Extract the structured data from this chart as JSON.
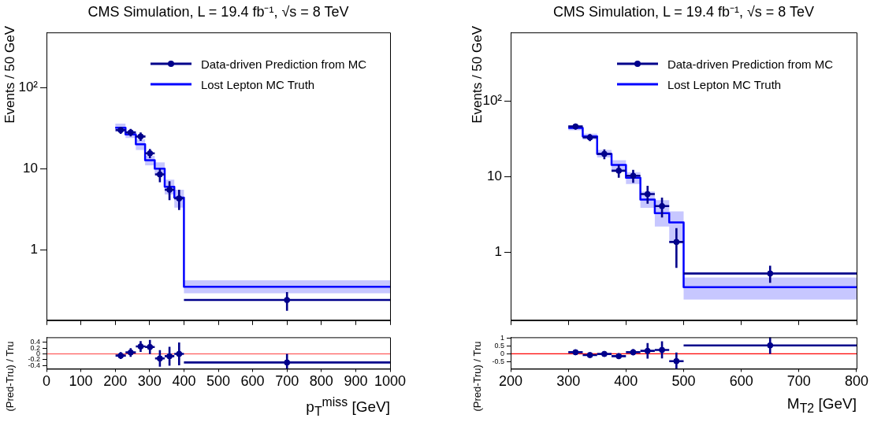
{
  "chart_data": [
    {
      "type": "scatter",
      "title": "CMS Simulation, L = 19.4 fb⁻¹, √s = 8 TeV",
      "ylabel": "Events / 50 GeV",
      "log": "y",
      "xlim": [
        0,
        1000
      ],
      "xticks": [
        0,
        100,
        200,
        300,
        400,
        500,
        600,
        700,
        800,
        900,
        1000
      ],
      "ylim": [
        0.135,
        480
      ],
      "yticks": [
        1,
        10,
        {
          "value": 100,
          "label": "10²"
        }
      ],
      "tick_labels": "y",
      "legend": "top right",
      "series": [
        {
          "name": "Data-driven Prediction from MC",
          "color": "#00008b",
          "x": [
            216,
            245,
            274,
            301,
            330,
            358,
            386,
            700
          ],
          "values": [
            30,
            28,
            25,
            15.5,
            8.5,
            5.5,
            4.3,
            0.24
          ],
          "errors": [
            3,
            3,
            3,
            2,
            [
              6.8,
              10
            ],
            [
              4.1,
              7
            ],
            [
              3.1,
              5.5
            ],
            [
              0.177,
              0.3
            ]
          ],
          "xerrors": [
            15,
            15,
            14,
            14,
            14,
            14,
            14,
            300
          ]
        },
        {
          "name": "Lost Lepton MC Truth",
          "type": "step",
          "color": "#0000ff",
          "x": [
            200,
            230,
            260,
            287,
            315,
            344,
            372,
            400,
            1000
          ],
          "values": [
            32,
            26.5,
            20,
            12.7,
            10,
            6,
            4.4,
            0.35,
            0.35
          ],
          "lower": [
            28.5,
            24,
            17,
            11,
            8.3,
            4.8,
            3.3,
            0.29,
            0.29
          ],
          "upper": [
            36,
            29.5,
            23,
            14.5,
            12,
            7.3,
            5.5,
            0.42,
            0.42
          ]
        }
      ]
    },
    {
      "type": "scatter",
      "xlabel": "p$_{T}$$^{miss}$ [GeV]",
      "ylabel": "(Pred-Tru) / Tru",
      "xlim": [
        0,
        1000
      ],
      "xticks": [
        0,
        100,
        200,
        300,
        400,
        500,
        600,
        700,
        800,
        900,
        1000
      ],
      "ylim": [
        -0.52,
        0.58
      ],
      "yticks": [
        -0.4,
        -0.2,
        0,
        0.2,
        0.4
      ],
      "ref_lines": [
        {
          "axis": "y",
          "value": 0,
          "color": "#ff4040"
        }
      ],
      "series": [
        {
          "color": "#00008b",
          "x": [
            216,
            245,
            274,
            301,
            330,
            358,
            386,
            700
          ],
          "values": [
            -0.06,
            0.05,
            0.26,
            0.24,
            -0.16,
            -0.08,
            0,
            -0.3
          ],
          "errors": [
            0.12,
            0.15,
            0.19,
            0.25,
            0.29,
            0.33,
            0.4,
            [
              -0.52,
              0
            ]
          ],
          "xerrors": [
            15,
            15,
            14,
            14,
            14,
            14,
            14,
            300
          ]
        }
      ]
    },
    {
      "type": "scatter",
      "title": "CMS Simulation, L = 19.4 fb⁻¹, √s = 8 TeV",
      "ylabel": "Events / 50 GeV",
      "log": "y",
      "xlim": [
        200,
        800
      ],
      "xticks": [
        200,
        300,
        400,
        500,
        600,
        700,
        800
      ],
      "ylim": [
        0.128,
        800
      ],
      "yticks": [
        1,
        10,
        {
          "value": 100,
          "label": "10²"
        }
      ],
      "tick_labels": "y",
      "legend": "top right",
      "series": [
        {
          "name": "Data-driven Prediction from MC",
          "color": "#00008b",
          "x": [
            312.5,
            337.5,
            362.5,
            387.5,
            412.5,
            437.5,
            462.5,
            487.5,
            650
          ],
          "values": [
            46,
            33,
            20,
            12,
            10.3,
            5.9,
            4.1,
            1.38,
            0.53
          ],
          "errors": [
            4,
            3.5,
            3,
            2.3,
            2,
            [
              4.4,
              7.6
            ],
            [
              2.9,
              5.3
            ],
            [
              0.63,
              2.1
            ],
            [
              0.4,
              0.67
            ]
          ],
          "xerrors": [
            12.5,
            12.5,
            12.5,
            12.5,
            12.5,
            12.5,
            12.5,
            12.5,
            150
          ]
        },
        {
          "name": "Lost Lepton MC Truth",
          "type": "step",
          "color": "#0000ff",
          "x": [
            300,
            325,
            350,
            375,
            400,
            425,
            450,
            475,
            500,
            800
          ],
          "values": [
            44,
            34,
            20,
            14.3,
            9.7,
            5,
            3.3,
            2.5,
            0.35,
            0.35
          ],
          "lower": [
            41,
            31,
            18,
            12,
            8,
            3.9,
            2.2,
            1.4,
            0.24,
            0.24
          ],
          "upper": [
            47,
            37,
            22.5,
            16.5,
            11.5,
            6.4,
            4.9,
            3.5,
            0.47,
            0.47
          ]
        }
      ]
    },
    {
      "type": "scatter",
      "xlabel": "M$_{T2}$ [GeV]",
      "ylabel": "(Pred-Tru) / Tru",
      "xlim": [
        200,
        800
      ],
      "xticks": [
        200,
        300,
        400,
        500,
        600,
        700,
        800
      ],
      "ylim": [
        -0.96,
        1.06
      ],
      "yticks": [
        -0.5,
        0,
        0.5,
        1
      ],
      "ref_lines": [
        {
          "axis": "y",
          "value": 0,
          "color": "#ff0000"
        }
      ],
      "series": [
        {
          "color": "#00008b",
          "x": [
            312.5,
            337.5,
            362.5,
            387.5,
            412.5,
            437.5,
            462.5,
            487.5,
            650
          ],
          "values": [
            0.1,
            -0.08,
            -0.01,
            -0.15,
            0.1,
            0.19,
            0.25,
            -0.47,
            0.54
          ],
          "errors": [
            0.07,
            0.1,
            0.14,
            0.16,
            0.2,
            0.5,
            0.55,
            [
              -0.96,
              0.08
            ],
            [
              0,
              1.05
            ]
          ],
          "xerrors": [
            12.5,
            12.5,
            12.5,
            12.5,
            12.5,
            12.5,
            12.5,
            12.5,
            150
          ]
        }
      ]
    }
  ]
}
